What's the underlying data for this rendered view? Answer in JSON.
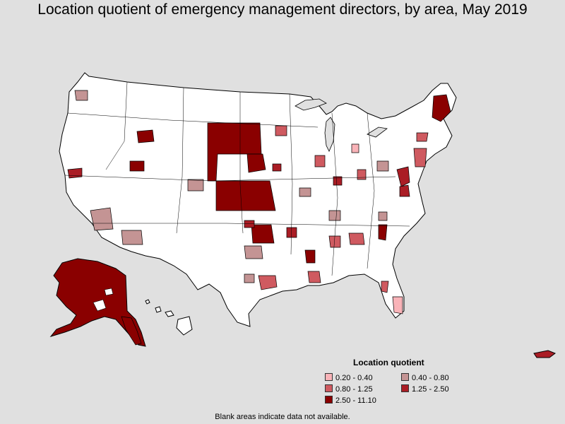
{
  "title": "Location quotient of emergency management directors, by area, May 2019",
  "legend": {
    "title": "Location quotient",
    "items": [
      {
        "label": "0.20 - 0.40",
        "color": "#f9b3b8"
      },
      {
        "label": "0.40 - 0.80",
        "color": "#c49494"
      },
      {
        "label": "0.80 - 1.25",
        "color": "#cf5a60"
      },
      {
        "label": "1.25 - 2.50",
        "color": "#aa1d25"
      },
      {
        "label": "2.50 - 11.10",
        "color": "#8a0000"
      }
    ]
  },
  "note": "Blank areas indicate data not available.",
  "colors": {
    "background": "#e0e0e0",
    "land": "#ffffff",
    "border": "#000000"
  }
}
